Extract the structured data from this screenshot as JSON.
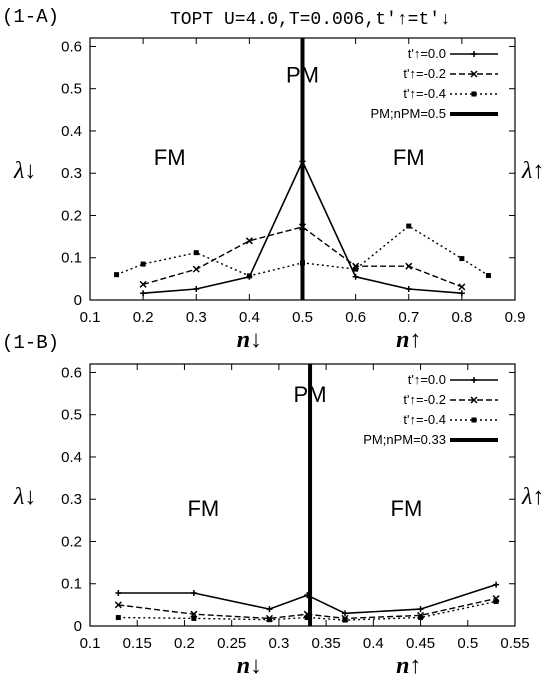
{
  "figure_title": "TOPT U=4.0,T=0.006,t'↑=t'↓",
  "side_label_left": "λ↓",
  "side_label_right": "λ↑",
  "chart_data": [
    {
      "type": "line",
      "panel_label": "(1-A)",
      "xlim": [
        0.1,
        0.9
      ],
      "ylim": [
        0,
        0.62
      ],
      "xticks": [
        0.1,
        0.2,
        0.3,
        0.4,
        0.5,
        0.6,
        0.7,
        0.8,
        0.9
      ],
      "xtick_labels": [
        "0.1",
        "0.2",
        "0.3",
        "0.4",
        "0.5",
        "0.6",
        "0.7",
        "0.8",
        "0.9"
      ],
      "yticks": [
        0,
        0.1,
        0.2,
        0.3,
        0.4,
        0.5,
        0.6
      ],
      "ytick_labels": [
        "0",
        "0.1",
        "0.2",
        "0.3",
        "0.4",
        "0.5",
        "0.6"
      ],
      "xlabel_left": "n↓",
      "xlabel_right": "n↑",
      "ylabel_left": "λ↓",
      "ylabel_right": "λ↑",
      "regions": [
        {
          "text": "FM",
          "x": 0.25,
          "y": 0.32
        },
        {
          "text": "PM",
          "x": 0.5,
          "y": 0.515
        },
        {
          "text": "FM",
          "x": 0.7,
          "y": 0.32
        }
      ],
      "series": [
        {
          "name": "t'↑=0.0",
          "style": "solid",
          "x": [
            0.2,
            0.3,
            0.4,
            0.5,
            0.6,
            0.7,
            0.8
          ],
          "y": [
            0.016,
            0.026,
            0.055,
            0.328,
            0.055,
            0.026,
            0.016
          ]
        },
        {
          "name": "t'↑=-0.2",
          "style": "dashed",
          "x": [
            0.2,
            0.3,
            0.4,
            0.5,
            0.6,
            0.7,
            0.8
          ],
          "y": [
            0.037,
            0.073,
            0.14,
            0.173,
            0.08,
            0.08,
            0.031
          ]
        },
        {
          "name": "t'↑=-0.4",
          "style": "dotted",
          "x": [
            0.15,
            0.2,
            0.3,
            0.4,
            0.5,
            0.6,
            0.7,
            0.8,
            0.85
          ],
          "y": [
            0.06,
            0.085,
            0.112,
            0.057,
            0.088,
            0.073,
            0.175,
            0.098,
            0.058
          ]
        }
      ],
      "vline": {
        "name": "PM;nPM=0.5",
        "x": 0.5
      }
    },
    {
      "type": "line",
      "panel_label": "(1-B)",
      "xlim": [
        0.1,
        0.55
      ],
      "ylim": [
        0,
        0.62
      ],
      "xticks": [
        0.1,
        0.15,
        0.2,
        0.25,
        0.3,
        0.35,
        0.4,
        0.45,
        0.5,
        0.55
      ],
      "xtick_labels": [
        "0.1",
        "0.15",
        "0.2",
        "0.25",
        "0.3",
        "0.35",
        "0.4",
        "0.45",
        "0.5",
        "0.55"
      ],
      "yticks": [
        0,
        0.1,
        0.2,
        0.3,
        0.4,
        0.5,
        0.6
      ],
      "ytick_labels": [
        "0",
        "0.1",
        "0.2",
        "0.3",
        "0.4",
        "0.5",
        "0.6"
      ],
      "xlabel_left": "n↓",
      "xlabel_right": "n↑",
      "ylabel_left": "λ↓",
      "ylabel_right": "λ↑",
      "regions": [
        {
          "text": "FM",
          "x": 0.22,
          "y": 0.26
        },
        {
          "text": "PM",
          "x": 0.333,
          "y": 0.53
        },
        {
          "text": "FM",
          "x": 0.435,
          "y": 0.26
        }
      ],
      "series": [
        {
          "name": "t'↑=0.0",
          "style": "solid",
          "x": [
            0.13,
            0.21,
            0.29,
            0.33,
            0.37,
            0.45,
            0.53
          ],
          "y": [
            0.078,
            0.078,
            0.04,
            0.073,
            0.03,
            0.04,
            0.098
          ]
        },
        {
          "name": "t'↑=-0.2",
          "style": "dashed",
          "x": [
            0.13,
            0.21,
            0.29,
            0.33,
            0.37,
            0.45,
            0.53
          ],
          "y": [
            0.05,
            0.028,
            0.018,
            0.028,
            0.018,
            0.025,
            0.065
          ]
        },
        {
          "name": "t'↑=-0.4",
          "style": "dotted",
          "x": [
            0.13,
            0.21,
            0.29,
            0.33,
            0.37,
            0.45,
            0.53
          ],
          "y": [
            0.02,
            0.018,
            0.015,
            0.02,
            0.014,
            0.02,
            0.058
          ]
        }
      ],
      "vline": {
        "name": "PM;nPM=0.33",
        "x": 0.333
      }
    }
  ]
}
